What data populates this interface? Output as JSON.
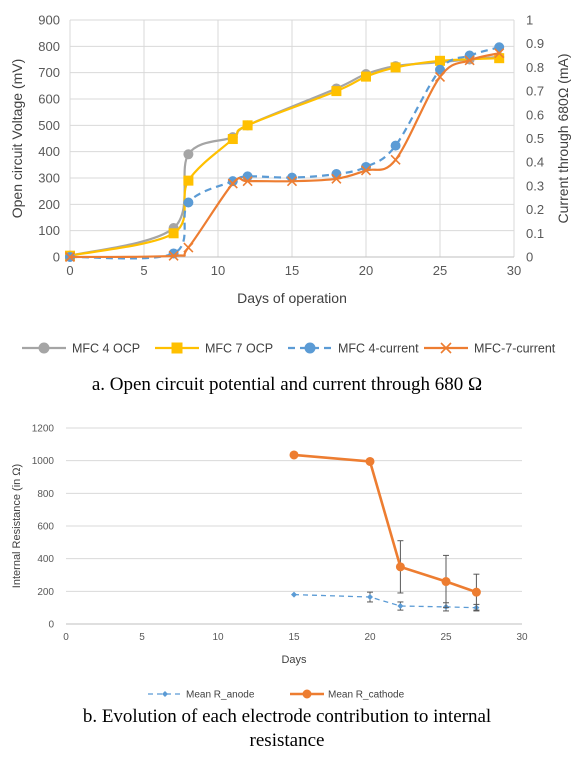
{
  "chart_data": [
    {
      "type": "line",
      "xlabel": "Days of operation",
      "ylabel": "Open circuit Voltage (mV)",
      "y2label": "Current through 680Ω (mA)",
      "xlim": [
        0,
        30
      ],
      "ylim": [
        0,
        900
      ],
      "y2lim": [
        0,
        1
      ],
      "xticks": [
        "0",
        "5",
        "10",
        "15",
        "20",
        "25",
        "30"
      ],
      "yticks": [
        "0",
        "100",
        "200",
        "300",
        "400",
        "500",
        "600",
        "700",
        "800",
        "900"
      ],
      "y2ticks": [
        "0",
        "0.1",
        "0.2",
        "0.3",
        "0.4",
        "0.5",
        "0.6",
        "0.7",
        "0.8",
        "0.9",
        "1"
      ],
      "grid": true,
      "legend_position": "bottom",
      "series": [
        {
          "name": "MFC 4 OCP",
          "axis": "left",
          "color": "#a5a5a5",
          "marker": "circle",
          "dash": "solid",
          "x": [
            0,
            7,
            8,
            11,
            12,
            18,
            20,
            22,
            25,
            27,
            29
          ],
          "y": [
            5,
            110,
            390,
            455,
            500,
            640,
            695,
            725,
            740,
            750,
            760
          ]
        },
        {
          "name": "MFC 7 OCP",
          "axis": "left",
          "color": "#ffc000",
          "marker": "square",
          "dash": "solid",
          "x": [
            0,
            7,
            8,
            11,
            12,
            18,
            20,
            22,
            25,
            29
          ],
          "y": [
            5,
            90,
            290,
            448,
            500,
            630,
            685,
            720,
            745,
            755
          ]
        },
        {
          "name": "MFC 4-current",
          "axis": "right",
          "color": "#5b9bd5",
          "marker": "circle",
          "dash": "dashed",
          "x": [
            0,
            7,
            8,
            11,
            12,
            15,
            18,
            20,
            22,
            25,
            27,
            29
          ],
          "y": [
            0.0,
            0.015,
            0.23,
            0.32,
            0.34,
            0.335,
            0.35,
            0.38,
            0.47,
            0.79,
            0.85,
            0.885
          ]
        },
        {
          "name": "MFC-7-current",
          "axis": "right",
          "color": "#ed7d31",
          "marker": "x",
          "dash": "solid",
          "x": [
            0,
            7,
            8,
            11,
            12,
            15,
            18,
            20,
            22,
            25,
            27,
            29
          ],
          "y": [
            0.0,
            0.005,
            0.04,
            0.31,
            0.32,
            0.32,
            0.33,
            0.365,
            0.41,
            0.76,
            0.83,
            0.86
          ]
        }
      ]
    },
    {
      "type": "line",
      "xlabel": "Days",
      "ylabel": "Internal Resistance (in Ω)",
      "xlim": [
        0,
        30
      ],
      "ylim": [
        0,
        1200
      ],
      "xticks": [
        "0",
        "5",
        "10",
        "15",
        "20",
        "25",
        "30"
      ],
      "yticks": [
        "0",
        "200",
        "400",
        "600",
        "800",
        "1000",
        "1200"
      ],
      "grid": true,
      "legend_position": "bottom",
      "series": [
        {
          "name": "Mean R_anode",
          "color": "#5b9bd5",
          "marker": "diamond",
          "dash": "dashed",
          "x": [
            15,
            20,
            22,
            25,
            27
          ],
          "y": [
            180,
            165,
            110,
            105,
            100
          ],
          "errors": [
            0,
            30,
            25,
            25,
            20
          ]
        },
        {
          "name": "Mean R_cathode",
          "color": "#ed7d31",
          "marker": "circle",
          "dash": "solid",
          "x": [
            15,
            20,
            22,
            25,
            27
          ],
          "y": [
            1035,
            995,
            350,
            260,
            195
          ],
          "errors": [
            0,
            0,
            160,
            160,
            110
          ]
        }
      ]
    }
  ],
  "captions": {
    "a": "a. Open circuit potential and current through 680 Ω",
    "b_line1": "b. Evolution of each electrode contribution to internal",
    "b_line2": "resistance"
  }
}
